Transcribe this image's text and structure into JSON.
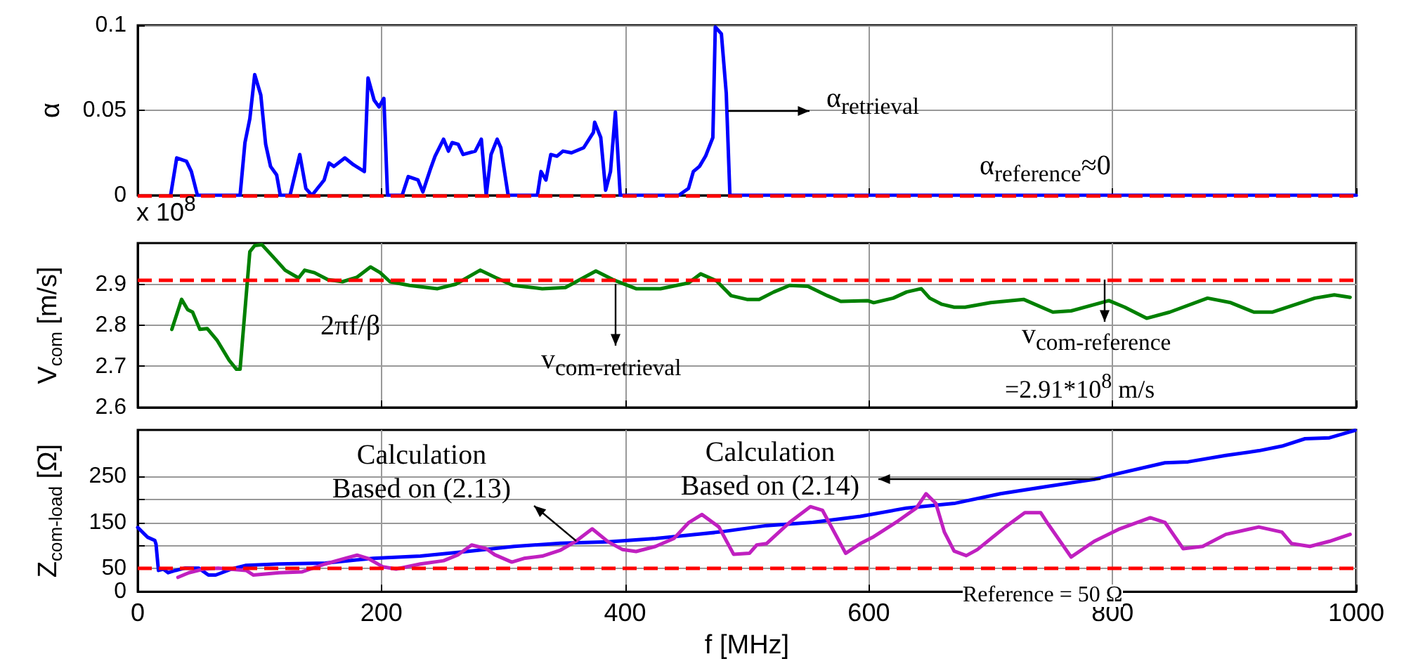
{
  "chart_data": [
    {
      "type": "line",
      "ylabel": "α",
      "marker": "none",
      "line_style": "solid",
      "grid": true,
      "tick_labels": "y",
      "xlim": [
        0,
        1000
      ],
      "xticks": [
        0,
        200,
        400,
        600,
        800,
        1000
      ],
      "ylim": [
        0,
        0.1
      ],
      "yticks": [
        0,
        0.05,
        0.1
      ],
      "series": [
        {
          "color": "#0000ff",
          "x": [
            27,
            32,
            40,
            44,
            49,
            84,
            88,
            92,
            96,
            101,
            105,
            109,
            114,
            117,
            125,
            133,
            138,
            143,
            153,
            157,
            161,
            170,
            177,
            186,
            189,
            194,
            198,
            202,
            205,
            217,
            222,
            230,
            234,
            240,
            244,
            251,
            255,
            258,
            263,
            267,
            277,
            282,
            286,
            290,
            295,
            298,
            304,
            328,
            331,
            335,
            339,
            344,
            349,
            356,
            366,
            374,
            375,
            380,
            384,
            388,
            392,
            396,
            444,
            452,
            456,
            461,
            466,
            472,
            474,
            479,
            483,
            486,
            1000
          ],
          "values": [
            0,
            0.022,
            0.02,
            0.014,
            0,
            0,
            0.031,
            0.045,
            0.071,
            0.059,
            0.03,
            0.017,
            0.012,
            0,
            0,
            0.024,
            0.004,
            0,
            0.009,
            0.019,
            0.017,
            0.022,
            0.018,
            0.014,
            0.069,
            0.056,
            0.052,
            0.057,
            0,
            0,
            0.011,
            0.009,
            0.002,
            0.015,
            0.023,
            0.033,
            0.026,
            0.031,
            0.03,
            0.024,
            0.026,
            0.033,
            0,
            0.024,
            0.033,
            0.028,
            0,
            0,
            0.014,
            0.009,
            0.024,
            0.023,
            0.026,
            0.025,
            0.028,
            0.037,
            0.043,
            0.034,
            0.003,
            0.014,
            0.049,
            0,
            0,
            0.004,
            0.014,
            0.017,
            0.023,
            0.034,
            0.099,
            0.095,
            0.06,
            0,
            0
          ]
        }
      ],
      "ref_lines": [
        {
          "axis": "y",
          "value": 0,
          "color": "#ff0000",
          "line_style": "dashed"
        }
      ],
      "annotations": [
        {
          "text": "α$_{retrieval}$",
          "x": 485,
          "y": 0.05
        },
        "α$_{reference}$≈0"
      ]
    },
    {
      "type": "line",
      "ylabel": "V$_{com}$ [m/s]",
      "marker": "none",
      "line_style": "solid",
      "grid": true,
      "tick_labels": "y",
      "xlim": [
        0,
        1000
      ],
      "xticks": [
        0,
        200,
        400,
        600,
        800,
        1000
      ],
      "ylim": [
        2.6,
        3.0
      ],
      "yticks": [
        2.6,
        2.7,
        2.8,
        2.9
      ],
      "series": [
        {
          "color": "#008000",
          "x": [
            28,
            36,
            41,
            45,
            51,
            57,
            65,
            75,
            81,
            84,
            92,
            96,
            102,
            114,
            121,
            132,
            137,
            145,
            156,
            168,
            180,
            191,
            199,
            207,
            223,
            246,
            261,
            281,
            293,
            308,
            332,
            351,
            376,
            390,
            409,
            429,
            452,
            462,
            475,
            487,
            500,
            510,
            522,
            535,
            550,
            566,
            577,
            599,
            604,
            620,
            631,
            643,
            650,
            660,
            670,
            679,
            700,
            727,
            751,
            766,
            797,
            810,
            828,
            847,
            878,
            897,
            916,
            931,
            966,
            982,
            995
          ],
          "values": [
            2.79,
            2.863,
            2.838,
            2.832,
            2.79,
            2.792,
            2.764,
            2.715,
            2.693,
            2.693,
            2.979,
            2.994,
            2.996,
            2.957,
            2.934,
            2.915,
            2.934,
            2.928,
            2.911,
            2.906,
            2.917,
            2.942,
            2.928,
            2.906,
            2.897,
            2.889,
            2.9,
            2.934,
            2.917,
            2.897,
            2.889,
            2.892,
            2.932,
            2.911,
            2.889,
            2.889,
            2.903,
            2.925,
            2.908,
            2.872,
            2.863,
            2.863,
            2.881,
            2.897,
            2.895,
            2.872,
            2.858,
            2.86,
            2.855,
            2.866,
            2.881,
            2.889,
            2.866,
            2.851,
            2.844,
            2.844,
            2.855,
            2.863,
            2.832,
            2.835,
            2.86,
            2.844,
            2.817,
            2.832,
            2.866,
            2.855,
            2.832,
            2.832,
            2.866,
            2.874,
            2.868
          ]
        }
      ],
      "ref_lines": [
        {
          "axis": "y",
          "value": 2.91,
          "color": "#ff0000",
          "line_style": "dashed"
        }
      ],
      "annotations": [
        "x 10$^{8}$",
        "2πf/β",
        {
          "text": "v$_{com-retrieval}$",
          "x": 392,
          "y": 2.9
        },
        {
          "text": "v$_{com-reference}$",
          "x": 793,
          "y": 2.91
        },
        "=2.91*10$^{8}$ m/s"
      ]
    },
    {
      "type": "line",
      "xlabel": "f [MHz]",
      "ylabel": "Z$_{com-load}$ [Ω]",
      "marker": "none",
      "line_style": "solid",
      "grid": true,
      "xlim": [
        0,
        1000
      ],
      "xticks": [
        0,
        200,
        400,
        600,
        800,
        1000
      ],
      "ylim": [
        0,
        350
      ],
      "yticks": [
        0,
        50,
        {
          "value": 100,
          "label": null
        },
        150,
        {
          "value": 200,
          "label": null
        },
        250
      ],
      "series": [
        {
          "color": "#0000ff",
          "x": [
            0,
            8,
            14,
            15,
            17,
            21,
            25,
            31,
            39,
            50,
            58,
            64,
            77,
            89,
            116,
            154,
            193,
            232,
            270,
            309,
            347,
            386,
            425,
            477,
            516,
            554,
            593,
            631,
            670,
            708,
            747,
            785,
            805,
            843,
            862,
            893,
            920,
            939,
            958,
            978,
            999
          ],
          "values": [
            139,
            118,
            111,
            103,
            46,
            49,
            41,
            46,
            51,
            51,
            36,
            36,
            49,
            57,
            60,
            62,
            72,
            77,
            87,
            98,
            105,
            108,
            115,
            129,
            143,
            150,
            163,
            181,
            191,
            212,
            228,
            243,
            256,
            279,
            281,
            295,
            305,
            315,
            331,
            333,
            349
          ]
        },
        {
          "color": "#c020c0",
          "x": [
            33,
            42,
            54,
            66,
            89,
            95,
            116,
            135,
            154,
            170,
            180,
            189,
            201,
            212,
            232,
            251,
            263,
            274,
            286,
            293,
            307,
            317,
            332,
            347,
            359,
            373,
            386,
            398,
            409,
            425,
            440,
            452,
            463,
            477,
            489,
            502,
            508,
            516,
            535,
            552,
            562,
            581,
            593,
            604,
            624,
            639,
            647,
            655,
            662,
            670,
            680,
            689,
            712,
            728,
            741,
            747,
            766,
            785,
            805,
            831,
            843,
            858,
            874,
            893,
            920,
            939,
            947,
            962,
            978,
            995
          ],
          "values": [
            31,
            41,
            49,
            51,
            46,
            36,
            41,
            43,
            60,
            72,
            79,
            72,
            54,
            49,
            60,
            67,
            80,
            101,
            93,
            80,
            64,
            72,
            77,
            90,
            108,
            136,
            108,
            91,
            87,
            98,
            115,
            149,
            167,
            140,
            81,
            83,
            101,
            104,
            150,
            184,
            176,
            83,
            104,
            119,
            153,
            181,
            212,
            191,
            129,
            88,
            78,
            91,
            140,
            171,
            171,
            147,
            75,
            109,
            135,
            160,
            150,
            93,
            98,
            124,
            140,
            129,
            104,
            98,
            109,
            124
          ]
        }
      ],
      "ref_lines": [
        {
          "axis": "y",
          "value": 50,
          "color": "#ff0000",
          "line_style": "dashed"
        }
      ],
      "annotations": [
        {
          "text": "Calculation\nBased on (2.13)",
          "x": 360,
          "y": 110
        },
        {
          "text": "Calculation\nBased on (2.14)",
          "x": 790,
          "y": 243
        },
        "Reference = 50 Ω"
      ]
    }
  ]
}
